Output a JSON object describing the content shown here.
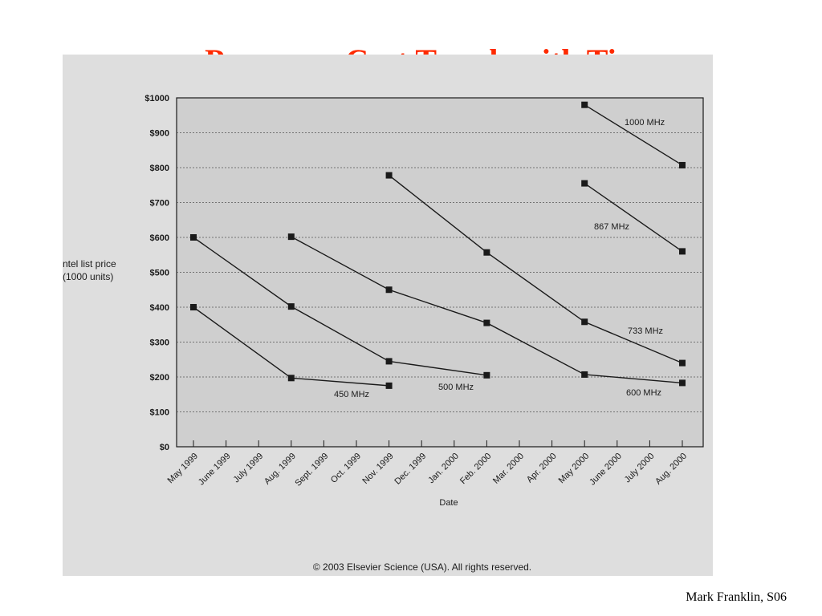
{
  "slide": {
    "title": "Processor Cost Trends with Time",
    "footer": "Mark Franklin, S06"
  },
  "colors": {
    "title": "#ff2a00",
    "scan_bg": "#dedede",
    "plot_bg": "#cfcfcf",
    "ink": "#1a1a1a"
  },
  "chart_data": {
    "type": "line",
    "title": "",
    "xlabel": "Date",
    "ylabel_lines": [
      "ntel list price",
      "(1000 units)"
    ],
    "categories": [
      "May 1999",
      "June 1999",
      "July 1999",
      "Aug. 1999",
      "Sept. 1999",
      "Oct. 1999",
      "Nov. 1999",
      "Dec. 1999",
      "Jan. 2000",
      "Feb. 2000",
      "Mar. 2000",
      "Apr. 2000",
      "May 2000",
      "June 2000",
      "July 2000",
      "Aug. 2000"
    ],
    "y_ticks": [
      "$0",
      "$100",
      "$200",
      "$300",
      "$400",
      "$500",
      "$600",
      "$700",
      "$800",
      "$900",
      "$1000"
    ],
    "ylim": [
      0,
      1000
    ],
    "grid": true,
    "series": [
      {
        "name": "450 MHz",
        "points": [
          [
            "May 1999",
            400
          ],
          [
            "Aug. 1999",
            197
          ],
          [
            "Nov. 1999",
            175
          ]
        ]
      },
      {
        "name": "500 MHz",
        "points": [
          [
            "May 1999",
            600
          ],
          [
            "Aug. 1999",
            402
          ],
          [
            "Nov. 1999",
            245
          ],
          [
            "Feb. 2000",
            205
          ]
        ]
      },
      {
        "name": "600 MHz",
        "points": [
          [
            "Aug. 1999",
            602
          ],
          [
            "Nov. 1999",
            450
          ],
          [
            "Feb. 2000",
            355
          ],
          [
            "May 2000",
            207
          ],
          [
            "Aug. 2000",
            183
          ]
        ]
      },
      {
        "name": "733 MHz",
        "points": [
          [
            "Nov. 1999",
            778
          ],
          [
            "Feb. 2000",
            557
          ],
          [
            "May 2000",
            358
          ],
          [
            "Aug. 2000",
            240
          ]
        ]
      },
      {
        "name": "867 MHz",
        "points": [
          [
            "May 2000",
            755
          ],
          [
            "Aug. 2000",
            560
          ]
        ]
      },
      {
        "name": "1000 MHz",
        "points": [
          [
            "May 2000",
            980
          ],
          [
            "Aug. 2000",
            807
          ]
        ]
      }
    ],
    "copyright": "© 2003 Elsevier Science (USA). All rights reserved."
  }
}
